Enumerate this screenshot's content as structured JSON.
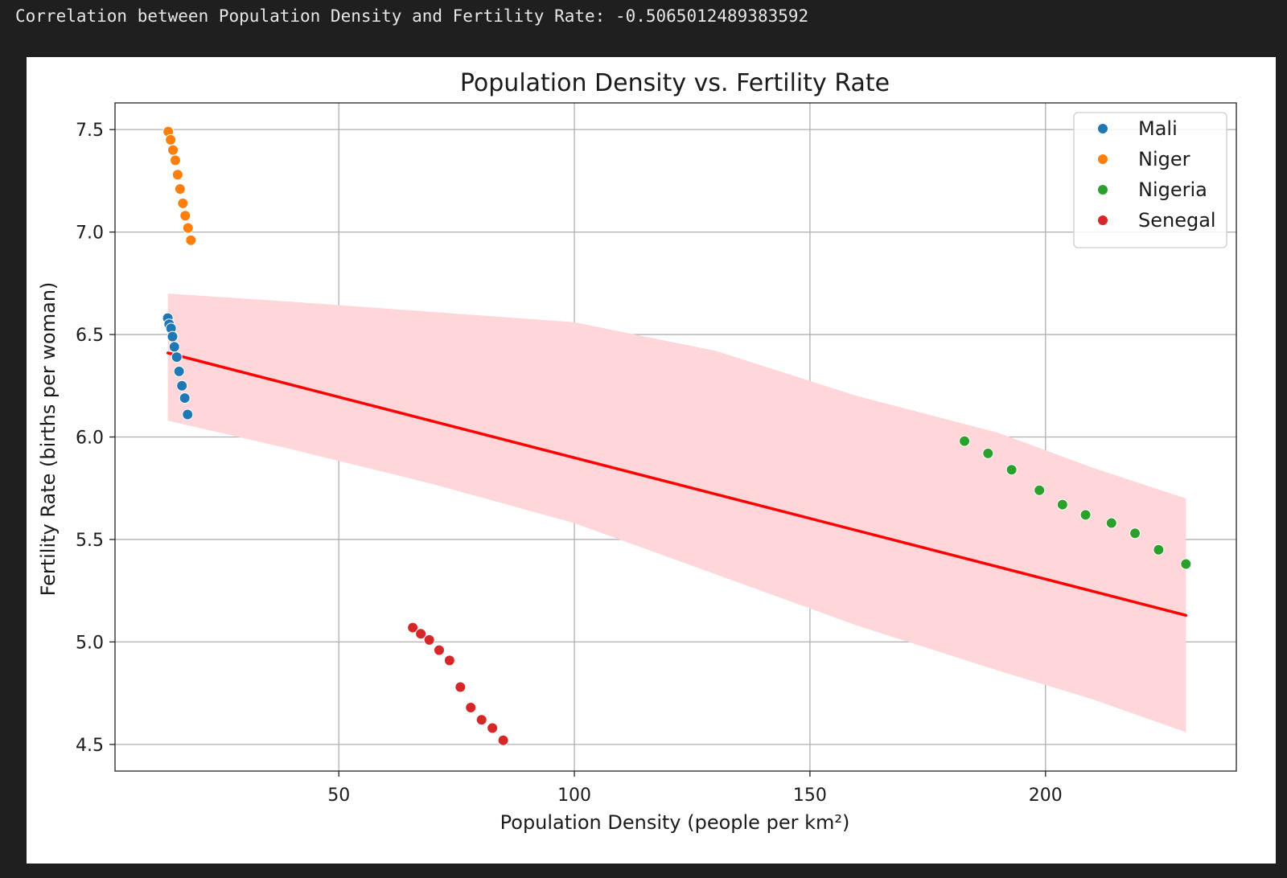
{
  "console": {
    "output_line": "Correlation between Population Density and Fertility Rate: -0.5065012489383592"
  },
  "chart_data": {
    "type": "scatter",
    "title": "Population Density vs. Fertility Rate",
    "xlabel": "Population Density (people per km²)",
    "ylabel": "Fertility Rate (births per woman)",
    "xlim": [
      2.5,
      240.5
    ],
    "ylim": [
      4.37,
      7.63
    ],
    "xticks": [
      50,
      100,
      150,
      200
    ],
    "xtick_labels": [
      "50",
      "100",
      "150",
      "200"
    ],
    "yticks": [
      4.5,
      5.0,
      5.5,
      6.0,
      6.5,
      7.0,
      7.5
    ],
    "ytick_labels": [
      "4.5",
      "5.0",
      "5.5",
      "6.0",
      "6.5",
      "7.0",
      "7.5"
    ],
    "grid": true,
    "legend_position": "top-right",
    "series": [
      {
        "name": "Mali",
        "color": "#1f77b4",
        "x": [
          13.7,
          14.0,
          14.4,
          14.7,
          15.1,
          15.6,
          16.1,
          16.7,
          17.3,
          17.9
        ],
        "y": [
          6.58,
          6.55,
          6.53,
          6.49,
          6.44,
          6.39,
          6.32,
          6.25,
          6.19,
          6.11
        ]
      },
      {
        "name": "Niger",
        "color": "#ff7f0e",
        "x": [
          13.8,
          14.3,
          14.8,
          15.3,
          15.8,
          16.3,
          16.9,
          17.4,
          18.0,
          18.6
        ],
        "y": [
          7.49,
          7.45,
          7.4,
          7.35,
          7.28,
          7.21,
          7.14,
          7.08,
          7.02,
          6.96
        ]
      },
      {
        "name": "Nigeria",
        "color": "#2ca02c",
        "x": [
          182.8,
          187.8,
          192.8,
          198.7,
          203.6,
          208.5,
          214.0,
          219.0,
          224.0,
          229.8
        ],
        "y": [
          5.98,
          5.92,
          5.84,
          5.74,
          5.67,
          5.62,
          5.58,
          5.53,
          5.45,
          5.38
        ]
      },
      {
        "name": "Senegal",
        "color": "#d62728",
        "x": [
          65.7,
          67.4,
          69.2,
          71.3,
          73.5,
          75.8,
          78.0,
          80.3,
          82.6,
          84.9
        ],
        "y": [
          5.07,
          5.04,
          5.01,
          4.96,
          4.91,
          4.78,
          4.68,
          4.62,
          4.58,
          4.52
        ]
      }
    ],
    "regression": {
      "color": "#ff0000",
      "band_color": "#ffd6d9",
      "x_start": 13.7,
      "x_end": 229.8,
      "y_start": 6.41,
      "y_end": 5.13,
      "band_lower": [
        [
          13.7,
          6.08
        ],
        [
          40,
          5.94
        ],
        [
          70,
          5.77
        ],
        [
          100,
          5.58
        ],
        [
          130,
          5.33
        ],
        [
          160,
          5.08
        ],
        [
          190,
          4.86
        ],
        [
          210,
          4.72
        ],
        [
          229.8,
          4.56
        ]
      ],
      "band_upper": [
        [
          229.8,
          5.7
        ],
        [
          210,
          5.85
        ],
        [
          190,
          6.02
        ],
        [
          160,
          6.2
        ],
        [
          130,
          6.42
        ],
        [
          100,
          6.56
        ],
        [
          70,
          6.61
        ],
        [
          40,
          6.66
        ],
        [
          13.7,
          6.7
        ]
      ]
    }
  }
}
